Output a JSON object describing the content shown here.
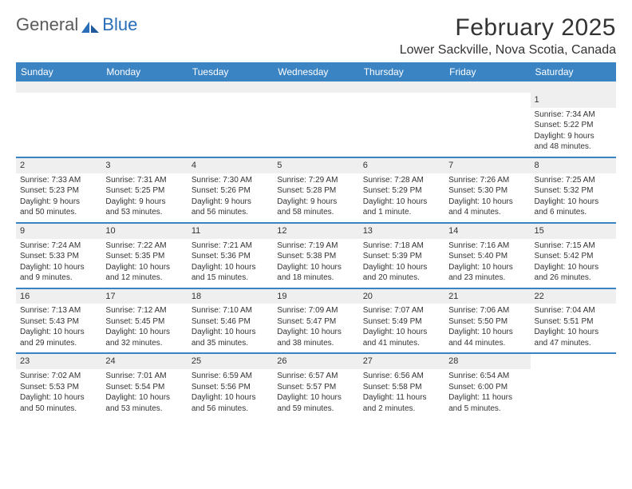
{
  "logo": {
    "text1": "General",
    "text2": "Blue"
  },
  "title": "February 2025",
  "location": "Lower Sackville, Nova Scotia, Canada",
  "colors": {
    "header_bg": "#3b84c4",
    "header_text": "#ffffff",
    "daynum_bg": "#efefef",
    "border": "#3b84c4",
    "text": "#333333",
    "logo_gray": "#5a5a5a",
    "logo_blue": "#2a6db8"
  },
  "weekdays": [
    "Sunday",
    "Monday",
    "Tuesday",
    "Wednesday",
    "Thursday",
    "Friday",
    "Saturday"
  ],
  "weeks": [
    [
      null,
      null,
      null,
      null,
      null,
      null,
      {
        "n": "1",
        "sunrise": "Sunrise: 7:34 AM",
        "sunset": "Sunset: 5:22 PM",
        "day1": "Daylight: 9 hours",
        "day2": "and 48 minutes."
      }
    ],
    [
      {
        "n": "2",
        "sunrise": "Sunrise: 7:33 AM",
        "sunset": "Sunset: 5:23 PM",
        "day1": "Daylight: 9 hours",
        "day2": "and 50 minutes."
      },
      {
        "n": "3",
        "sunrise": "Sunrise: 7:31 AM",
        "sunset": "Sunset: 5:25 PM",
        "day1": "Daylight: 9 hours",
        "day2": "and 53 minutes."
      },
      {
        "n": "4",
        "sunrise": "Sunrise: 7:30 AM",
        "sunset": "Sunset: 5:26 PM",
        "day1": "Daylight: 9 hours",
        "day2": "and 56 minutes."
      },
      {
        "n": "5",
        "sunrise": "Sunrise: 7:29 AM",
        "sunset": "Sunset: 5:28 PM",
        "day1": "Daylight: 9 hours",
        "day2": "and 58 minutes."
      },
      {
        "n": "6",
        "sunrise": "Sunrise: 7:28 AM",
        "sunset": "Sunset: 5:29 PM",
        "day1": "Daylight: 10 hours",
        "day2": "and 1 minute."
      },
      {
        "n": "7",
        "sunrise": "Sunrise: 7:26 AM",
        "sunset": "Sunset: 5:30 PM",
        "day1": "Daylight: 10 hours",
        "day2": "and 4 minutes."
      },
      {
        "n": "8",
        "sunrise": "Sunrise: 7:25 AM",
        "sunset": "Sunset: 5:32 PM",
        "day1": "Daylight: 10 hours",
        "day2": "and 6 minutes."
      }
    ],
    [
      {
        "n": "9",
        "sunrise": "Sunrise: 7:24 AM",
        "sunset": "Sunset: 5:33 PM",
        "day1": "Daylight: 10 hours",
        "day2": "and 9 minutes."
      },
      {
        "n": "10",
        "sunrise": "Sunrise: 7:22 AM",
        "sunset": "Sunset: 5:35 PM",
        "day1": "Daylight: 10 hours",
        "day2": "and 12 minutes."
      },
      {
        "n": "11",
        "sunrise": "Sunrise: 7:21 AM",
        "sunset": "Sunset: 5:36 PM",
        "day1": "Daylight: 10 hours",
        "day2": "and 15 minutes."
      },
      {
        "n": "12",
        "sunrise": "Sunrise: 7:19 AM",
        "sunset": "Sunset: 5:38 PM",
        "day1": "Daylight: 10 hours",
        "day2": "and 18 minutes."
      },
      {
        "n": "13",
        "sunrise": "Sunrise: 7:18 AM",
        "sunset": "Sunset: 5:39 PM",
        "day1": "Daylight: 10 hours",
        "day2": "and 20 minutes."
      },
      {
        "n": "14",
        "sunrise": "Sunrise: 7:16 AM",
        "sunset": "Sunset: 5:40 PM",
        "day1": "Daylight: 10 hours",
        "day2": "and 23 minutes."
      },
      {
        "n": "15",
        "sunrise": "Sunrise: 7:15 AM",
        "sunset": "Sunset: 5:42 PM",
        "day1": "Daylight: 10 hours",
        "day2": "and 26 minutes."
      }
    ],
    [
      {
        "n": "16",
        "sunrise": "Sunrise: 7:13 AM",
        "sunset": "Sunset: 5:43 PM",
        "day1": "Daylight: 10 hours",
        "day2": "and 29 minutes."
      },
      {
        "n": "17",
        "sunrise": "Sunrise: 7:12 AM",
        "sunset": "Sunset: 5:45 PM",
        "day1": "Daylight: 10 hours",
        "day2": "and 32 minutes."
      },
      {
        "n": "18",
        "sunrise": "Sunrise: 7:10 AM",
        "sunset": "Sunset: 5:46 PM",
        "day1": "Daylight: 10 hours",
        "day2": "and 35 minutes."
      },
      {
        "n": "19",
        "sunrise": "Sunrise: 7:09 AM",
        "sunset": "Sunset: 5:47 PM",
        "day1": "Daylight: 10 hours",
        "day2": "and 38 minutes."
      },
      {
        "n": "20",
        "sunrise": "Sunrise: 7:07 AM",
        "sunset": "Sunset: 5:49 PM",
        "day1": "Daylight: 10 hours",
        "day2": "and 41 minutes."
      },
      {
        "n": "21",
        "sunrise": "Sunrise: 7:06 AM",
        "sunset": "Sunset: 5:50 PM",
        "day1": "Daylight: 10 hours",
        "day2": "and 44 minutes."
      },
      {
        "n": "22",
        "sunrise": "Sunrise: 7:04 AM",
        "sunset": "Sunset: 5:51 PM",
        "day1": "Daylight: 10 hours",
        "day2": "and 47 minutes."
      }
    ],
    [
      {
        "n": "23",
        "sunrise": "Sunrise: 7:02 AM",
        "sunset": "Sunset: 5:53 PM",
        "day1": "Daylight: 10 hours",
        "day2": "and 50 minutes."
      },
      {
        "n": "24",
        "sunrise": "Sunrise: 7:01 AM",
        "sunset": "Sunset: 5:54 PM",
        "day1": "Daylight: 10 hours",
        "day2": "and 53 minutes."
      },
      {
        "n": "25",
        "sunrise": "Sunrise: 6:59 AM",
        "sunset": "Sunset: 5:56 PM",
        "day1": "Daylight: 10 hours",
        "day2": "and 56 minutes."
      },
      {
        "n": "26",
        "sunrise": "Sunrise: 6:57 AM",
        "sunset": "Sunset: 5:57 PM",
        "day1": "Daylight: 10 hours",
        "day2": "and 59 minutes."
      },
      {
        "n": "27",
        "sunrise": "Sunrise: 6:56 AM",
        "sunset": "Sunset: 5:58 PM",
        "day1": "Daylight: 11 hours",
        "day2": "and 2 minutes."
      },
      {
        "n": "28",
        "sunrise": "Sunrise: 6:54 AM",
        "sunset": "Sunset: 6:00 PM",
        "day1": "Daylight: 11 hours",
        "day2": "and 5 minutes."
      },
      null
    ]
  ]
}
